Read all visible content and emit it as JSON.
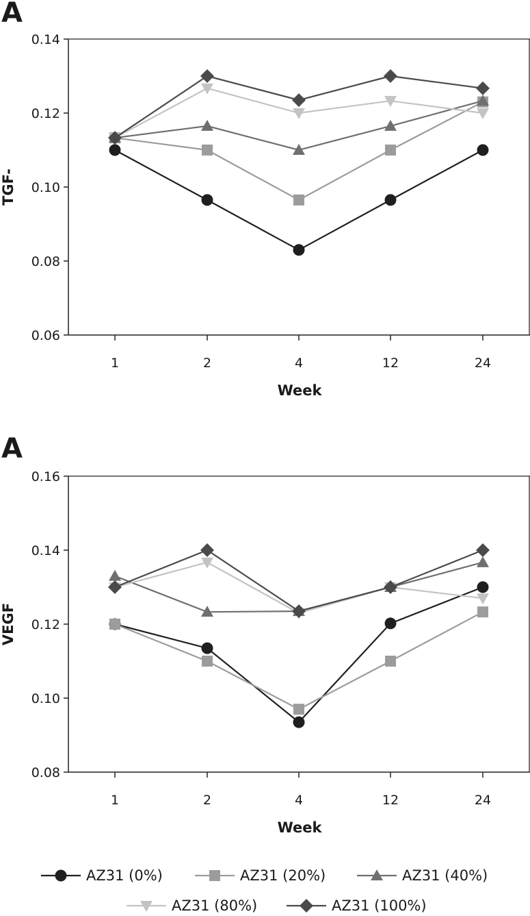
{
  "chart_data": [
    {
      "type": "line",
      "panel_label": "A",
      "ylabel": "TGF-",
      "xlabel": "Week",
      "categories": [
        "1",
        "2",
        "4",
        "12",
        "24"
      ],
      "ylim": [
        0.06,
        0.14
      ],
      "yticks": [
        "0.06",
        "0.08",
        "0.10",
        "0.12",
        "0.14"
      ],
      "series": [
        {
          "name": "AZ31 (0%)",
          "values": [
            0.11,
            0.0965,
            0.083,
            0.0965,
            0.11
          ]
        },
        {
          "name": "AZ31 (20%)",
          "values": [
            0.1133,
            0.11,
            0.0965,
            0.11,
            0.123
          ]
        },
        {
          "name": "AZ31 (40%)",
          "values": [
            0.1133,
            0.1165,
            0.11,
            0.1165,
            0.1233
          ]
        },
        {
          "name": "AZ31 (80%)",
          "values": [
            0.1133,
            0.1267,
            0.12,
            0.1233,
            0.12
          ]
        },
        {
          "name": "AZ31 (100%)",
          "values": [
            0.1133,
            0.13,
            0.1235,
            0.13,
            0.1267
          ]
        }
      ]
    },
    {
      "type": "line",
      "panel_label": "A",
      "ylabel": "VEGF",
      "xlabel": "Week",
      "categories": [
        "1",
        "2",
        "4",
        "12",
        "24"
      ],
      "ylim": [
        0.08,
        0.16
      ],
      "yticks": [
        "0.08",
        "0.10",
        "0.12",
        "0.14",
        "0.16"
      ],
      "series": [
        {
          "name": "AZ31 (0%)",
          "values": [
            0.12,
            0.1135,
            0.0935,
            0.1202,
            0.13
          ]
        },
        {
          "name": "AZ31 (20%)",
          "values": [
            0.12,
            0.11,
            0.097,
            0.11,
            0.1233
          ]
        },
        {
          "name": "AZ31 (40%)",
          "values": [
            0.133,
            0.1233,
            0.1235,
            0.13,
            0.1367
          ]
        },
        {
          "name": "AZ31 (80%)",
          "values": [
            0.13,
            0.1367,
            0.123,
            0.13,
            0.127
          ]
        },
        {
          "name": "AZ31 (100%)",
          "values": [
            0.13,
            0.14,
            0.1235,
            0.13,
            0.14
          ]
        }
      ]
    }
  ],
  "legend": [
    {
      "label": "AZ31 (0%)",
      "marker": "circle",
      "color": "#1f1f1f"
    },
    {
      "label": "AZ31 (20%)",
      "marker": "square",
      "color": "#9c9c9c"
    },
    {
      "label": "AZ31 (40%)",
      "marker": "triangle-up",
      "color": "#6f6f6f"
    },
    {
      "label": "AZ31 (80%)",
      "marker": "triangle-down",
      "color": "#c3c3c3"
    },
    {
      "label": "AZ31 (100%)",
      "marker": "diamond",
      "color": "#4a4a4a"
    }
  ]
}
